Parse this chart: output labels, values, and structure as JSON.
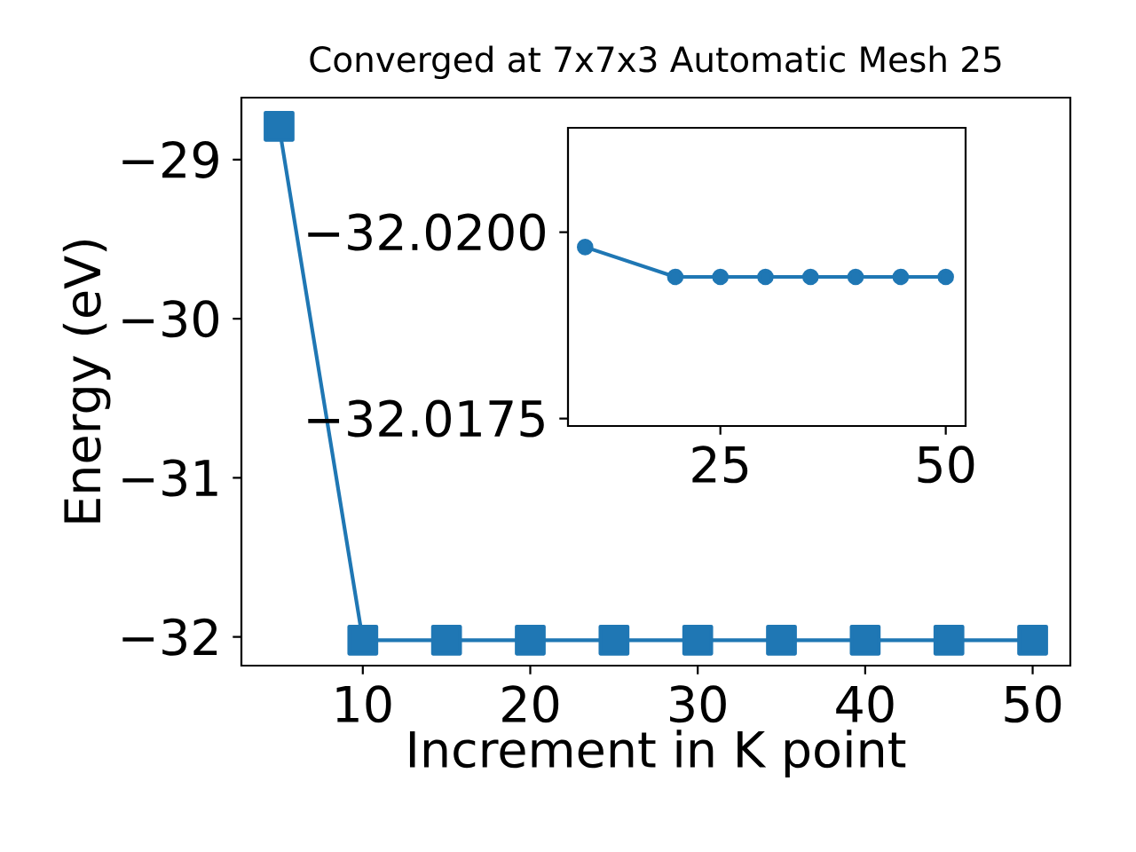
{
  "chart_data": [
    {
      "type": "line",
      "title": "Converged at 7x7x3 Automatic Mesh 25",
      "xlabel": "Increment in K point",
      "ylabel": "Energy (eV)",
      "color": "#1f77b4",
      "marker": "square",
      "line_style": "solid",
      "x": [
        5,
        10,
        15,
        20,
        25,
        30,
        35,
        40,
        45,
        50
      ],
      "values": [
        -28.79,
        -32.02,
        -32.02,
        -32.02,
        -32.02,
        -32.02,
        -32.02,
        -32.02,
        -32.02,
        -32.02
      ],
      "xlim": [
        2.75,
        52.25
      ],
      "ylim": [
        -32.18,
        -28.61
      ],
      "xticks": [
        10,
        20,
        30,
        40,
        50
      ],
      "yticks": [
        {
          "value": -32,
          "label": "−32"
        },
        {
          "value": -31,
          "label": "−31"
        },
        {
          "value": -30,
          "label": "−30"
        },
        {
          "value": -29,
          "label": "−29"
        }
      ]
    },
    {
      "type": "line",
      "color": "#1f77b4",
      "marker": "circle",
      "line_style": "solid",
      "x": [
        10,
        20,
        25,
        30,
        35,
        40,
        45,
        50
      ],
      "values": [
        -32.0198,
        -32.0194,
        -32.0194,
        -32.0194,
        -32.0194,
        -32.0194,
        -32.0194,
        -32.0194
      ],
      "xlim": [
        8.1,
        52.2
      ],
      "ylim": [
        -32.0174,
        -32.0214
      ],
      "xticks": [
        25,
        50
      ],
      "yticks": [
        {
          "value": -32.0175,
          "label": "−32.0175"
        },
        {
          "value": -32.02,
          "label": "−32.0200"
        }
      ]
    }
  ]
}
